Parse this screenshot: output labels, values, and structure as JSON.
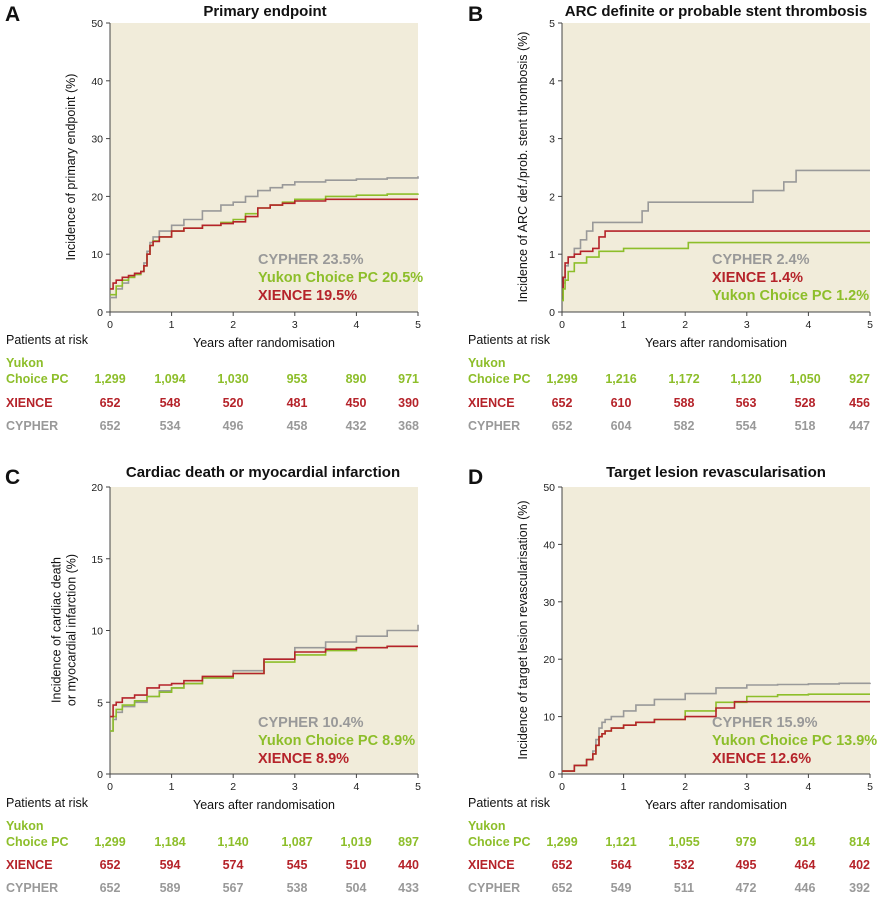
{
  "colors": {
    "yukon": "#8dbe2a",
    "xience": "#b5232a",
    "cypher": "#999999",
    "plot_bg": "#f1ecda",
    "axis": "#444444"
  },
  "chart_data": [
    {
      "type": "line",
      "letter": "A",
      "title": "Primary endpoint",
      "xlabel": "Years after randomisation",
      "ylabel": [
        "Incidence of primary endpoint (%)"
      ],
      "xlim": [
        0,
        5
      ],
      "ylim": [
        0,
        50
      ],
      "xticks": [
        0,
        1,
        2,
        3,
        4,
        5
      ],
      "yticks": [
        0,
        10,
        20,
        30,
        40,
        50
      ],
      "grid": false,
      "legend_position": "lower-right",
      "legend": [
        {
          "key": "cypher",
          "text": "CYPHER 23.5%"
        },
        {
          "key": "yukon",
          "text": "Yukon Choice PC 20.5%"
        },
        {
          "key": "xience",
          "text": "XIENCE 19.5%"
        }
      ],
      "series": [
        {
          "key": "cypher",
          "x": [
            0,
            0.1,
            0.2,
            0.3,
            0.4,
            0.5,
            0.55,
            0.6,
            0.65,
            0.7,
            0.8,
            1.0,
            1.2,
            1.5,
            1.8,
            2.0,
            2.2,
            2.4,
            2.6,
            2.8,
            3.0,
            3.5,
            4.0,
            4.5,
            5.0
          ],
          "y": [
            2.5,
            4.0,
            5.0,
            6.0,
            6.5,
            7.0,
            8.5,
            10.5,
            12.0,
            13.0,
            14.0,
            15.0,
            16.0,
            17.5,
            18.5,
            19.0,
            20.0,
            21.0,
            21.5,
            22.0,
            22.5,
            22.8,
            23.0,
            23.2,
            23.5
          ]
        },
        {
          "key": "yukon",
          "x": [
            0,
            0.1,
            0.2,
            0.3,
            0.4,
            0.5,
            0.55,
            0.6,
            0.65,
            0.7,
            0.8,
            1.0,
            1.2,
            1.5,
            1.8,
            2.0,
            2.2,
            2.4,
            2.6,
            2.8,
            3.0,
            3.5,
            4.0,
            4.5,
            5.0
          ],
          "y": [
            3.0,
            4.5,
            5.5,
            6.0,
            6.5,
            7.0,
            8.0,
            10.0,
            11.5,
            12.3,
            13.0,
            14.0,
            14.5,
            15.0,
            15.5,
            16.0,
            17.0,
            18.0,
            18.5,
            19.0,
            19.5,
            20.0,
            20.2,
            20.4,
            20.5
          ]
        },
        {
          "key": "xience",
          "x": [
            0,
            0.05,
            0.1,
            0.2,
            0.3,
            0.4,
            0.5,
            0.55,
            0.6,
            0.65,
            0.7,
            0.8,
            1.0,
            1.2,
            1.5,
            1.8,
            2.0,
            2.2,
            2.4,
            2.6,
            2.8,
            3.0,
            3.5,
            4.0,
            4.5,
            5.0
          ],
          "y": [
            4.0,
            5.0,
            5.5,
            6.0,
            6.3,
            6.7,
            7.0,
            8.0,
            10.0,
            11.5,
            12.2,
            13.0,
            14.0,
            14.5,
            15.0,
            15.3,
            15.6,
            16.5,
            18.0,
            18.5,
            18.8,
            19.2,
            19.5,
            19.5,
            19.5,
            19.5
          ]
        }
      ],
      "risk_table": {
        "header": "Patients at risk",
        "rows": [
          {
            "key": "yukon",
            "label1": "Yukon",
            "label2": "Choice PC",
            "values": [
              "1,299",
              "1,094",
              "1,030",
              "953",
              "890",
              "971"
            ]
          },
          {
            "key": "xience",
            "label1": "",
            "label2": "XIENCE",
            "values": [
              "652",
              "548",
              "520",
              "481",
              "450",
              "390"
            ]
          },
          {
            "key": "cypher",
            "label1": "",
            "label2": "CYPHER",
            "values": [
              "652",
              "534",
              "496",
              "458",
              "432",
              "368"
            ]
          }
        ]
      }
    },
    {
      "type": "line",
      "letter": "B",
      "title": "ARC definite or probable stent thrombosis",
      "xlabel": "Years after randomisation",
      "ylabel": [
        "Incidence of ARC def./prob. stent thrombosis (%)"
      ],
      "xlim": [
        0,
        5
      ],
      "ylim": [
        0,
        5
      ],
      "xticks": [
        0,
        1,
        2,
        3,
        4,
        5
      ],
      "yticks": [
        0,
        1,
        2,
        3,
        4,
        5
      ],
      "grid": false,
      "legend_position": "lower-right",
      "legend": [
        {
          "key": "cypher",
          "text": "CYPHER 2.4%"
        },
        {
          "key": "xience",
          "text": "XIENCE 1.4%"
        },
        {
          "key": "yukon",
          "text": "Yukon Choice PC 1.2%"
        }
      ],
      "series": [
        {
          "key": "cypher",
          "x": [
            0,
            0.02,
            0.05,
            0.1,
            0.2,
            0.3,
            0.4,
            0.5,
            0.6,
            1.3,
            1.4,
            2.0,
            2.1,
            3.1,
            3.2,
            3.6,
            3.8,
            5.0
          ],
          "y": [
            0.2,
            0.5,
            0.8,
            0.95,
            1.1,
            1.25,
            1.4,
            1.55,
            1.55,
            1.75,
            1.9,
            1.9,
            1.9,
            2.1,
            2.1,
            2.25,
            2.45,
            2.45
          ]
        },
        {
          "key": "xience",
          "x": [
            0,
            0.02,
            0.05,
            0.1,
            0.2,
            0.3,
            0.5,
            0.6,
            0.7,
            1.0,
            5.0
          ],
          "y": [
            0.3,
            0.6,
            0.85,
            0.95,
            1.0,
            1.05,
            1.1,
            1.3,
            1.4,
            1.4,
            1.4
          ]
        },
        {
          "key": "yukon",
          "x": [
            0,
            0.02,
            0.05,
            0.1,
            0.2,
            0.4,
            0.6,
            1.0,
            2.0,
            2.05,
            5.0
          ],
          "y": [
            0.2,
            0.4,
            0.55,
            0.7,
            0.85,
            0.95,
            1.05,
            1.1,
            1.1,
            1.2,
            1.2
          ]
        }
      ],
      "risk_table": {
        "header": "Patients at risk",
        "rows": [
          {
            "key": "yukon",
            "label1": "Yukon",
            "label2": "Choice PC",
            "values": [
              "1,299",
              "1,216",
              "1,172",
              "1,120",
              "1,050",
              "927"
            ]
          },
          {
            "key": "xience",
            "label1": "",
            "label2": "XIENCE",
            "values": [
              "652",
              "610",
              "588",
              "563",
              "528",
              "456"
            ]
          },
          {
            "key": "cypher",
            "label1": "",
            "label2": "CYPHER",
            "values": [
              "652",
              "604",
              "582",
              "554",
              "518",
              "447"
            ]
          }
        ]
      }
    },
    {
      "type": "line",
      "letter": "C",
      "title": "Cardiac death or myocardial infarction",
      "xlabel": "Years after randomisation",
      "ylabel": [
        "Incidence of cardiac death",
        "or myocardial infarction (%)"
      ],
      "xlim": [
        0,
        5
      ],
      "ylim": [
        0,
        20
      ],
      "xticks": [
        0,
        1,
        2,
        3,
        4,
        5
      ],
      "yticks": [
        0,
        5,
        10,
        15,
        20
      ],
      "grid": false,
      "legend_position": "lower-right",
      "legend": [
        {
          "key": "cypher",
          "text": "CYPHER 10.4%"
        },
        {
          "key": "yukon",
          "text": "Yukon Choice PC 8.9%"
        },
        {
          "key": "xience",
          "text": "XIENCE 8.9%"
        }
      ],
      "series": [
        {
          "key": "cypher",
          "x": [
            0,
            0.05,
            0.1,
            0.2,
            0.4,
            0.6,
            0.8,
            1.0,
            1.2,
            1.5,
            2.0,
            2.5,
            3.0,
            3.5,
            4.0,
            4.5,
            5.0
          ],
          "y": [
            3.0,
            3.8,
            4.3,
            4.7,
            5.0,
            5.4,
            5.8,
            6.0,
            6.3,
            6.7,
            7.2,
            8.0,
            8.8,
            9.2,
            9.6,
            10.0,
            10.4
          ]
        },
        {
          "key": "yukon",
          "x": [
            0,
            0.05,
            0.1,
            0.2,
            0.4,
            0.6,
            0.8,
            1.0,
            1.2,
            1.5,
            2.0,
            2.5,
            3.0,
            3.5,
            4.0,
            4.5,
            5.0
          ],
          "y": [
            3.0,
            4.0,
            4.5,
            4.8,
            5.1,
            5.4,
            5.7,
            6.0,
            6.3,
            6.7,
            7.0,
            7.8,
            8.3,
            8.6,
            8.8,
            8.9,
            8.9
          ]
        },
        {
          "key": "xience",
          "x": [
            0,
            0.05,
            0.1,
            0.2,
            0.4,
            0.6,
            0.8,
            1.0,
            1.2,
            1.5,
            2.0,
            2.5,
            3.0,
            3.5,
            4.0,
            4.5,
            5.0
          ],
          "y": [
            4.0,
            4.8,
            5.0,
            5.3,
            5.5,
            6.0,
            6.2,
            6.3,
            6.5,
            6.8,
            7.0,
            8.0,
            8.5,
            8.7,
            8.8,
            8.9,
            8.9
          ]
        }
      ],
      "risk_table": {
        "header": "Patients at risk",
        "rows": [
          {
            "key": "yukon",
            "label1": "Yukon",
            "label2": "Choice PC",
            "values": [
              "1,299",
              "1,184",
              "1,140",
              "1,087",
              "1,019",
              "897"
            ]
          },
          {
            "key": "xience",
            "label1": "",
            "label2": "XIENCE",
            "values": [
              "652",
              "594",
              "574",
              "545",
              "510",
              "440"
            ]
          },
          {
            "key": "cypher",
            "label1": "",
            "label2": "CYPHER",
            "values": [
              "652",
              "589",
              "567",
              "538",
              "504",
              "433"
            ]
          }
        ]
      }
    },
    {
      "type": "line",
      "letter": "D",
      "title": "Target lesion revascularisation",
      "xlabel": "Years after randomisation",
      "ylabel": [
        "Incidence of target lesion revascularisation (%)"
      ],
      "xlim": [
        0,
        5
      ],
      "ylim": [
        0,
        50
      ],
      "xticks": [
        0,
        1,
        2,
        3,
        4,
        5
      ],
      "yticks": [
        0,
        10,
        20,
        30,
        40,
        50
      ],
      "grid": false,
      "legend_position": "lower-right",
      "legend": [
        {
          "key": "cypher",
          "text": "CYPHER 15.9%"
        },
        {
          "key": "yukon",
          "text": "Yukon Choice PC 13.9%"
        },
        {
          "key": "xience",
          "text": "XIENCE 12.6%"
        }
      ],
      "series": [
        {
          "key": "cypher",
          "x": [
            0,
            0.2,
            0.4,
            0.5,
            0.55,
            0.6,
            0.65,
            0.7,
            0.8,
            1.0,
            1.2,
            1.5,
            2.0,
            2.5,
            3.0,
            3.5,
            4.0,
            4.5,
            5.0
          ],
          "y": [
            0.5,
            1.5,
            2.5,
            4.0,
            6.0,
            8.0,
            9.0,
            9.5,
            10.0,
            11.0,
            12.0,
            13.0,
            14.0,
            15.0,
            15.5,
            15.6,
            15.7,
            15.8,
            15.9
          ]
        },
        {
          "key": "yukon",
          "x": [
            0,
            0.2,
            0.4,
            0.5,
            0.55,
            0.6,
            0.65,
            0.7,
            0.8,
            1.0,
            1.2,
            1.5,
            2.0,
            2.5,
            3.0,
            3.5,
            4.0,
            4.5,
            5.0
          ],
          "y": [
            0.5,
            1.5,
            2.5,
            3.5,
            5.0,
            6.5,
            7.0,
            7.5,
            8.0,
            8.5,
            9.0,
            9.5,
            11.0,
            12.5,
            13.5,
            13.8,
            13.9,
            13.9,
            13.9
          ]
        },
        {
          "key": "xience",
          "x": [
            0,
            0.2,
            0.4,
            0.5,
            0.55,
            0.6,
            0.65,
            0.7,
            0.8,
            1.0,
            1.2,
            1.5,
            2.0,
            2.5,
            2.8,
            3.0,
            3.5,
            4.0,
            4.5,
            5.0
          ],
          "y": [
            0.5,
            1.5,
            2.5,
            3.5,
            5.0,
            6.5,
            7.0,
            7.5,
            8.0,
            8.5,
            9.0,
            9.5,
            10.0,
            11.5,
            12.6,
            12.6,
            12.6,
            12.6,
            12.6,
            12.6
          ]
        }
      ],
      "risk_table": {
        "header": "Patients at risk",
        "rows": [
          {
            "key": "yukon",
            "label1": "Yukon",
            "label2": "Choice PC",
            "values": [
              "1,299",
              "1,121",
              "1,055",
              "979",
              "914",
              "814"
            ]
          },
          {
            "key": "xience",
            "label1": "",
            "label2": "XIENCE",
            "values": [
              "652",
              "564",
              "532",
              "495",
              "464",
              "402"
            ]
          },
          {
            "key": "cypher",
            "label1": "",
            "label2": "CYPHER",
            "values": [
              "652",
              "549",
              "511",
              "472",
              "446",
              "392"
            ]
          }
        ]
      }
    }
  ]
}
